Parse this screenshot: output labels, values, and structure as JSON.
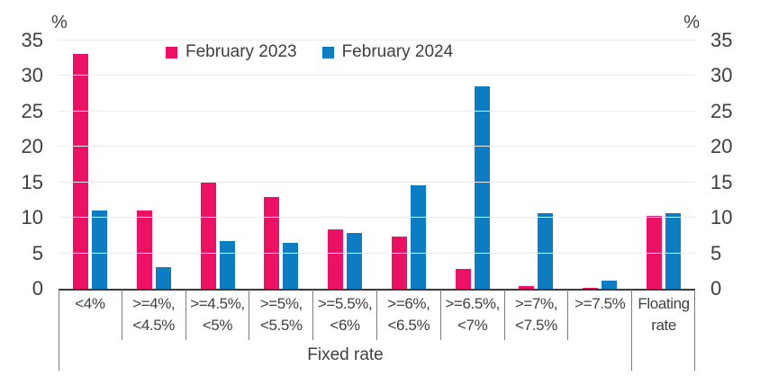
{
  "chart_data": {
    "type": "bar",
    "title": "",
    "y_axis": {
      "unit_label_left": "%",
      "unit_label_right": "%",
      "min": 0,
      "max": 35,
      "tick_interval": 5,
      "ticks": [
        0,
        5,
        10,
        15,
        20,
        25,
        30,
        35
      ],
      "grid": true
    },
    "categories": [
      [
        "<4%"
      ],
      [
        ">=4%,",
        "<4.5%"
      ],
      [
        ">=4.5%,",
        "<5%"
      ],
      [
        ">=5%,",
        "<5.5%"
      ],
      [
        ">=5.5%,",
        "<6%"
      ],
      [
        ">=6%,",
        "<6.5%"
      ],
      [
        ">=6.5%,",
        "<7%"
      ],
      [
        ">=7%,",
        "<7.5%"
      ],
      [
        ">=7.5%"
      ],
      [
        "Floating",
        "rate"
      ]
    ],
    "series": [
      {
        "name": "February 2023",
        "color": "#ED1164",
        "values": [
          33,
          11,
          14.9,
          12.9,
          8.3,
          7.4,
          2.8,
          0.4,
          0.1,
          10.2
        ]
      },
      {
        "name": "February 2024",
        "color": "#0C7DC2",
        "values": [
          11,
          3.1,
          6.7,
          6.4,
          7.8,
          14.5,
          28.5,
          10.6,
          1.2,
          10.6
        ]
      }
    ],
    "fixed_rate_group_label": "Fixed rate",
    "fixed_rate_span": [
      0,
      8
    ],
    "floating_rate_index": 9,
    "legend_position": "top"
  },
  "style": {
    "grid_color": "#ebebeb",
    "axis_color": "#3a3a3a",
    "separator_color": "#7a7a7a",
    "text_color": "#3f3f3f",
    "background": "#ffffff"
  }
}
